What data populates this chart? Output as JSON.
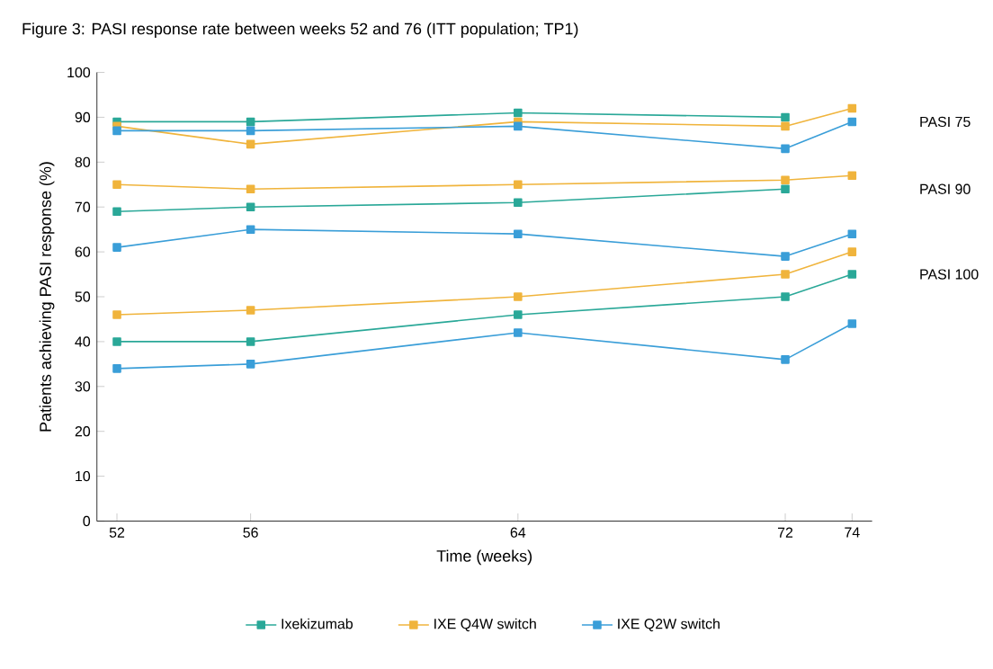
{
  "chart_data": {
    "type": "line",
    "title": "Figure 3: PASI response rate between weeks 52 and 76 (ITT population; TP1)",
    "xlabel": "Time (weeks)",
    "ylabel": "Patients achieving PASI response (%)",
    "x": [
      52,
      56,
      64,
      72,
      74
    ],
    "xlim": [
      51.4,
      74.6
    ],
    "xticks": [
      52,
      56,
      64,
      72,
      74
    ],
    "ylim": [
      0,
      100
    ],
    "yticks": [
      0,
      10,
      20,
      30,
      40,
      50,
      60,
      70,
      80,
      90,
      100
    ],
    "marker": "square",
    "legend": "bottom",
    "grid": false,
    "annotations": [
      "PASI 75",
      "PASI 90",
      "PASI 100"
    ],
    "series": [
      {
        "name": "Ixekizumab",
        "color": "#2aa898",
        "values": [
          89,
          89,
          91,
          90,
          null
        ]
      },
      {
        "name": "IXE Q4W switch",
        "color": "#f0b43c",
        "values": [
          88,
          84,
          89,
          88,
          92
        ]
      },
      {
        "name": "IXE Q2W switch",
        "color": "#3a9ed8",
        "values": [
          87,
          87,
          88,
          83,
          89
        ]
      },
      {
        "color": "#2aa898",
        "values": [
          69,
          70,
          71,
          74,
          null
        ]
      },
      {
        "color": "#f0b43c",
        "values": [
          75,
          74,
          75,
          76,
          77
        ]
      },
      {
        "color": "#3a9ed8",
        "values": [
          61,
          65,
          64,
          59,
          64
        ]
      },
      {
        "color": "#2aa898",
        "values": [
          40,
          40,
          46,
          50,
          55
        ]
      },
      {
        "color": "#f0b43c",
        "values": [
          46,
          47,
          50,
          55,
          60
        ]
      },
      {
        "color": "#3a9ed8",
        "values": [
          34,
          35,
          42,
          36,
          44
        ]
      }
    ]
  }
}
